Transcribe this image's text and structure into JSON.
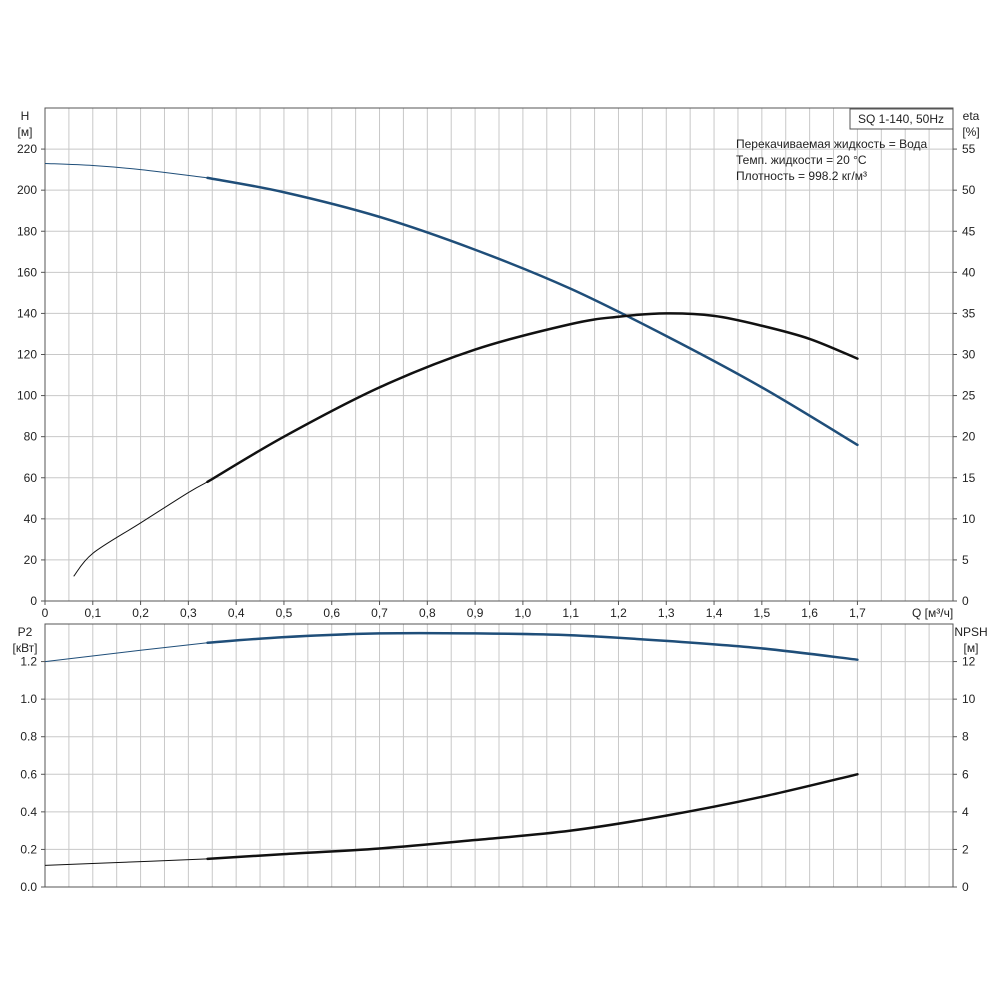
{
  "chart_data": [
    {
      "type": "line",
      "title": "SQ 1-140, 50Hz",
      "annotations": [
        "Перекачиваемая жидкость = Вода",
        "Темп. жидкости = 20 °C",
        "Плотность = 998.2 кг/м³"
      ],
      "xlabel": "Q [м³/ч]",
      "ylabel_left": [
        "H",
        "[м]"
      ],
      "ylabel_right": [
        "eta",
        "[%]"
      ],
      "xlim": [
        0,
        1.9
      ],
      "ylim_left": [
        0,
        240
      ],
      "ylim_right": [
        0,
        60
      ],
      "x_ticks": [
        "0",
        "0,1",
        "0,2",
        "0,3",
        "0,4",
        "0,5",
        "0,6",
        "0,7",
        "0,8",
        "0,9",
        "1,0",
        "1,1",
        "1,2",
        "1,3",
        "1,4",
        "1,5",
        "1,6",
        "1,7"
      ],
      "y_ticks_left": [
        "0",
        "20",
        "40",
        "60",
        "80",
        "100",
        "120",
        "140",
        "160",
        "180",
        "200",
        "220"
      ],
      "y_ticks_right": [
        "0",
        "5",
        "10",
        "15",
        "20",
        "25",
        "30",
        "35",
        "40",
        "45",
        "50",
        "55"
      ],
      "grid": true,
      "series": [
        {
          "axis": "left",
          "color": "#1f4e79",
          "thin_until_x": 0.34,
          "x": [
            0.0,
            0.1,
            0.2,
            0.34,
            0.5,
            0.7,
            0.9,
            1.1,
            1.3,
            1.5,
            1.7
          ],
          "y": [
            213,
            212,
            210,
            206,
            199,
            187,
            171,
            152,
            129,
            104,
            76
          ]
        },
        {
          "axis": "right",
          "color": "#111111",
          "thin_until_x": 0.34,
          "x": [
            0.06,
            0.1,
            0.2,
            0.3,
            0.34,
            0.5,
            0.7,
            0.9,
            1.1,
            1.2,
            1.3,
            1.4,
            1.5,
            1.6,
            1.7
          ],
          "y": [
            3,
            5.8,
            9.5,
            13.2,
            14.5,
            20,
            26,
            30.6,
            33.7,
            34.6,
            35,
            34.7,
            33.5,
            31.9,
            29.5
          ]
        }
      ]
    },
    {
      "type": "line",
      "xlim": [
        0,
        1.9
      ],
      "ylabel_left": [
        "P2",
        "[кВт]"
      ],
      "ylabel_right": [
        "NPSH",
        "[м]"
      ],
      "ylim_left": [
        0,
        1.4
      ],
      "ylim_right": [
        0,
        14
      ],
      "y_ticks_left": [
        "0.0",
        "0.2",
        "0.4",
        "0.6",
        "0.8",
        "1.0",
        "1.2"
      ],
      "y_ticks_right": [
        "0",
        "2",
        "4",
        "6",
        "8",
        "10",
        "12"
      ],
      "grid": true,
      "series": [
        {
          "axis": "left",
          "color": "#1f4e79",
          "thin_until_x": 0.34,
          "x": [
            0.0,
            0.2,
            0.34,
            0.5,
            0.7,
            0.9,
            1.1,
            1.3,
            1.5,
            1.7
          ],
          "y": [
            1.2,
            1.26,
            1.3,
            1.33,
            1.35,
            1.35,
            1.34,
            1.31,
            1.27,
            1.21
          ]
        },
        {
          "axis": "right",
          "color": "#111111",
          "thin_until_x": 0.34,
          "x": [
            0.0,
            0.2,
            0.34,
            0.5,
            0.7,
            0.9,
            1.1,
            1.3,
            1.5,
            1.7
          ],
          "y": [
            1.15,
            1.35,
            1.5,
            1.75,
            2.05,
            2.5,
            3.0,
            3.8,
            4.8,
            6.0
          ]
        }
      ]
    }
  ]
}
